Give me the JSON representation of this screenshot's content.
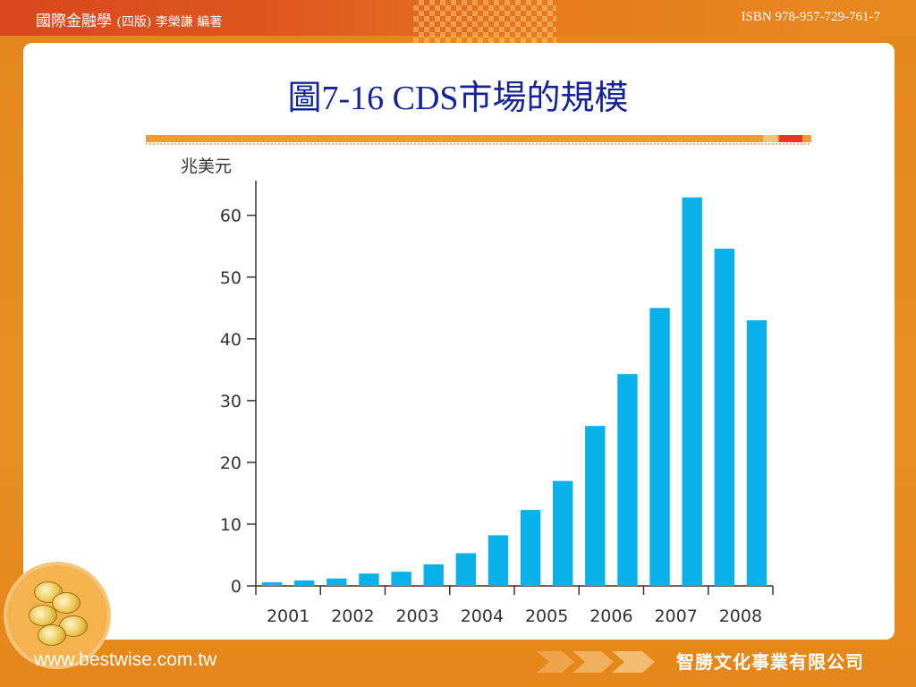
{
  "header": {
    "book_title": "國際金融學",
    "edition": "(四版) 李榮謙 編著",
    "isbn": "ISBN 978-957-729-761-7"
  },
  "slide": {
    "title": "圖7-16 CDS市場的規模"
  },
  "footer": {
    "website": "www.bestwise.com.tw",
    "publisher": "智勝文化事業有限公司"
  },
  "colors": {
    "bar": "#0ab0ea",
    "title": "#14239a",
    "accent": "#e98a1e"
  },
  "chart_data": {
    "type": "bar",
    "title": "",
    "xlabel": "",
    "ylabel": "兆美元",
    "x_ticks": [
      "2001",
      "2002",
      "2003",
      "2004",
      "2005",
      "2006",
      "2007",
      "2008"
    ],
    "y_ticks": [
      0,
      10,
      20,
      30,
      40,
      50,
      60
    ],
    "ylim": [
      0,
      63
    ],
    "grid": false,
    "series": [
      {
        "values": [
          0.6,
          0.9,
          1.2,
          2.0,
          2.3,
          3.5,
          5.3,
          8.2,
          12.3,
          17.0,
          25.9,
          34.3,
          45.0,
          62.9,
          54.6,
          43.0
        ]
      }
    ]
  }
}
